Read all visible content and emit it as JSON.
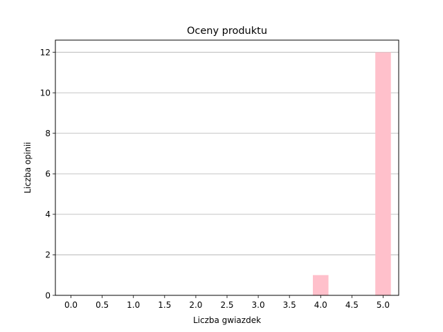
{
  "chart_data": {
    "type": "bar",
    "title": "Oceny produktu",
    "xlabel": "Liczba gwiazdek",
    "ylabel": "Liczba opinii",
    "x": [
      4.0,
      5.0
    ],
    "values": [
      1,
      12
    ],
    "bar_width": 0.25,
    "xlim": [
      -0.25,
      5.25
    ],
    "ylim": [
      0,
      12.6
    ],
    "xticks": [
      "0.0",
      "0.5",
      "1.0",
      "1.5",
      "2.0",
      "2.5",
      "3.0",
      "3.5",
      "4.0",
      "4.5",
      "5.0"
    ],
    "yticks": [
      "0",
      "2",
      "4",
      "6",
      "8",
      "10",
      "12"
    ],
    "grid": "y",
    "bar_color": "#ffc0cb",
    "grid_color": "#b0b0b0"
  }
}
